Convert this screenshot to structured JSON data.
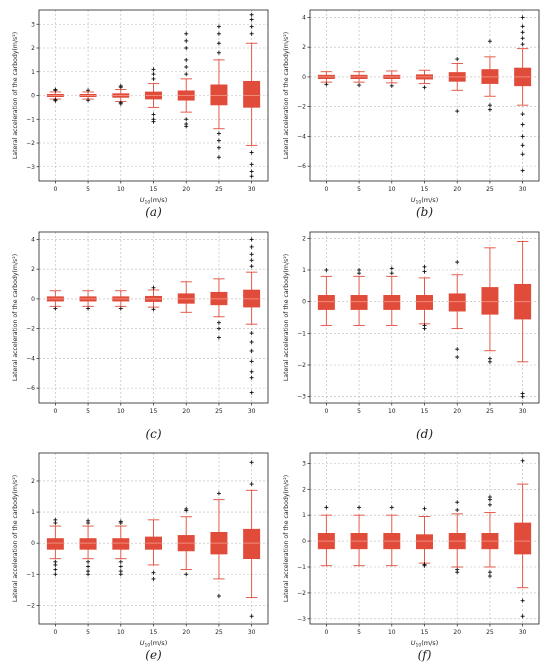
{
  "figure": {
    "panels": [
      {
        "caption": "(a)",
        "xlabel_main": "U",
        "xlabel_sub": "10",
        "xlabel_unit": "(m/s)",
        "ylabel": "Lateral acceleration of the carbody(m/s²)"
      },
      {
        "caption": "(b)",
        "xlabel_main": "U",
        "xlabel_sub": "10",
        "xlabel_unit": "(m/s)",
        "ylabel": "Lateral acceleration of the carbody(m/s²)"
      },
      {
        "caption": "(c)",
        "xlabel_main": "",
        "xlabel_sub": "",
        "xlabel_unit": "",
        "ylabel": "Lateral acceleration of the carbody(m/s²)"
      },
      {
        "caption": "(d)",
        "xlabel_main": "",
        "xlabel_sub": "",
        "xlabel_unit": "",
        "ylabel": "Lateral acceleration of the carbody(m/s²)"
      },
      {
        "caption": "(e)",
        "xlabel_main": "U",
        "xlabel_sub": "10",
        "xlabel_unit": "(m/s)",
        "ylabel": "Lateral acceleration of the carbody(m/s²)"
      },
      {
        "caption": "(f)",
        "xlabel_main": "U",
        "xlabel_sub": "10",
        "xlabel_unit": "(m/s)",
        "ylabel": "Lateral acceleration of the carbody(m/s²)"
      }
    ],
    "colors": {
      "box": "#e04b3a",
      "whisker": "#e04b3a",
      "median": "#f28a7a",
      "outlier": "#111111",
      "grid": "#b8b8b8"
    }
  },
  "chart_data": [
    {
      "type": "box",
      "title": "(a)",
      "categories": [
        "0",
        "5",
        "10",
        "15",
        "20",
        "25",
        "30"
      ],
      "ylim": [
        -3.6,
        3.6
      ],
      "yticks": [
        -3,
        -2,
        -1,
        0,
        1,
        2,
        3
      ],
      "grid": true,
      "boxes": [
        {
          "whislo": -0.15,
          "q1": -0.05,
          "med": 0,
          "q3": 0.05,
          "whishi": 0.15,
          "fliers": [
            0.22,
            0.25,
            -0.18,
            -0.22
          ]
        },
        {
          "whislo": -0.15,
          "q1": -0.05,
          "med": 0,
          "q3": 0.05,
          "whishi": 0.15,
          "fliers": [
            0.22,
            -0.2
          ]
        },
        {
          "whislo": -0.25,
          "q1": -0.08,
          "med": 0,
          "q3": 0.08,
          "whishi": 0.25,
          "fliers": [
            0.35,
            0.4,
            -0.35,
            -0.3
          ]
        },
        {
          "whislo": -0.5,
          "q1": -0.15,
          "med": 0,
          "q3": 0.15,
          "whishi": 0.5,
          "fliers": [
            0.7,
            0.9,
            1.1,
            -0.8,
            -1.0,
            -1.1
          ]
        },
        {
          "whislo": -0.7,
          "q1": -0.2,
          "med": 0,
          "q3": 0.2,
          "whishi": 0.7,
          "fliers": [
            0.9,
            1.2,
            1.5,
            2.0,
            2.3,
            2.6,
            -1.0,
            -1.2,
            -1.3
          ]
        },
        {
          "whislo": -1.4,
          "q1": -0.4,
          "med": 0,
          "q3": 0.45,
          "whishi": 1.5,
          "fliers": [
            1.8,
            2.2,
            2.6,
            2.9,
            -1.6,
            -1.9,
            -2.2,
            -2.6
          ]
        },
        {
          "whislo": -2.1,
          "q1": -0.5,
          "med": 0,
          "q3": 0.6,
          "whishi": 2.2,
          "fliers": [
            2.6,
            2.9,
            3.2,
            3.4,
            -2.4,
            -2.9,
            -3.2,
            -3.4
          ]
        }
      ]
    },
    {
      "type": "box",
      "title": "(b)",
      "categories": [
        "0",
        "5",
        "10",
        "15",
        "20",
        "25",
        "30"
      ],
      "ylim": [
        -7,
        4.5
      ],
      "yticks": [
        -6,
        -4,
        -2,
        0,
        2,
        4
      ],
      "grid": true,
      "boxes": [
        {
          "whislo": -0.35,
          "q1": -0.12,
          "med": 0,
          "q3": 0.12,
          "whishi": 0.35,
          "fliers": [
            -0.5
          ]
        },
        {
          "whislo": -0.35,
          "q1": -0.12,
          "med": 0,
          "q3": 0.12,
          "whishi": 0.35,
          "fliers": [
            -0.55
          ]
        },
        {
          "whislo": -0.4,
          "q1": -0.12,
          "med": 0,
          "q3": 0.12,
          "whishi": 0.4,
          "fliers": [
            -0.6
          ]
        },
        {
          "whislo": -0.45,
          "q1": -0.15,
          "med": 0,
          "q3": 0.15,
          "whishi": 0.45,
          "fliers": [
            -0.7
          ]
        },
        {
          "whislo": -0.9,
          "q1": -0.3,
          "med": 0,
          "q3": 0.3,
          "whishi": 0.9,
          "fliers": [
            1.2,
            -2.3
          ]
        },
        {
          "whislo": -1.3,
          "q1": -0.45,
          "med": 0,
          "q3": 0.5,
          "whishi": 1.35,
          "fliers": [
            2.4,
            -1.9,
            -2.2
          ]
        },
        {
          "whislo": -1.9,
          "q1": -0.6,
          "med": 0,
          "q3": 0.6,
          "whishi": 1.9,
          "fliers": [
            2.2,
            2.6,
            3.0,
            3.4,
            4.0,
            -2.5,
            -3.2,
            -4.0,
            -4.6,
            -5.2,
            -6.3
          ]
        }
      ]
    },
    {
      "type": "box",
      "title": "(c)",
      "categories": [
        "0",
        "5",
        "10",
        "15",
        "20",
        "25",
        "30"
      ],
      "ylim": [
        -7,
        4.5
      ],
      "yticks": [
        -6,
        -4,
        -2,
        0,
        2,
        4
      ],
      "grid": true,
      "boxes": [
        {
          "whislo": -0.5,
          "q1": -0.15,
          "med": 0,
          "q3": 0.15,
          "whishi": 0.55,
          "fliers": [
            -0.65
          ]
        },
        {
          "whislo": -0.5,
          "q1": -0.15,
          "med": 0,
          "q3": 0.15,
          "whishi": 0.55,
          "fliers": [
            -0.65
          ]
        },
        {
          "whislo": -0.5,
          "q1": -0.15,
          "med": 0,
          "q3": 0.15,
          "whishi": 0.55,
          "fliers": [
            -0.65
          ]
        },
        {
          "whislo": -0.55,
          "q1": -0.18,
          "med": 0,
          "q3": 0.18,
          "whishi": 0.6,
          "fliers": [
            0.75,
            -0.7
          ]
        },
        {
          "whislo": -0.9,
          "q1": -0.3,
          "med": 0,
          "q3": 0.35,
          "whishi": 1.15,
          "fliers": []
        },
        {
          "whislo": -1.2,
          "q1": -0.4,
          "med": 0,
          "q3": 0.45,
          "whishi": 1.35,
          "fliers": [
            -1.6,
            -2.0,
            -2.6
          ]
        },
        {
          "whislo": -1.7,
          "q1": -0.55,
          "med": 0,
          "q3": 0.6,
          "whishi": 1.8,
          "fliers": [
            2.2,
            2.6,
            3.0,
            3.5,
            4.0,
            -2.3,
            -2.9,
            -3.5,
            -4.2,
            -4.9,
            -5.3,
            -6.3
          ]
        }
      ]
    },
    {
      "type": "box",
      "title": "(d)",
      "categories": [
        "0",
        "5",
        "10",
        "15",
        "20",
        "25",
        "30"
      ],
      "ylim": [
        -3.2,
        2.2
      ],
      "yticks": [
        -3,
        -2,
        -1,
        0,
        1,
        2
      ],
      "grid": true,
      "boxes": [
        {
          "whislo": -0.75,
          "q1": -0.25,
          "med": 0,
          "q3": 0.2,
          "whishi": 0.8,
          "fliers": [
            1.0
          ]
        },
        {
          "whislo": -0.75,
          "q1": -0.25,
          "med": 0,
          "q3": 0.2,
          "whishi": 0.8,
          "fliers": [
            0.9,
            1.0
          ]
        },
        {
          "whislo": -0.75,
          "q1": -0.25,
          "med": 0,
          "q3": 0.2,
          "whishi": 0.8,
          "fliers": [
            0.9,
            1.05
          ]
        },
        {
          "whislo": -0.7,
          "q1": -0.25,
          "med": 0,
          "q3": 0.2,
          "whishi": 0.75,
          "fliers": [
            0.95,
            1.1,
            -0.75,
            -0.85
          ]
        },
        {
          "whislo": -0.85,
          "q1": -0.3,
          "med": 0,
          "q3": 0.25,
          "whishi": 0.85,
          "fliers": [
            1.25,
            -1.5,
            -1.75
          ]
        },
        {
          "whislo": -1.55,
          "q1": -0.4,
          "med": 0,
          "q3": 0.45,
          "whishi": 1.7,
          "fliers": [
            -1.8,
            -1.9
          ]
        },
        {
          "whislo": -1.9,
          "q1": -0.55,
          "med": 0,
          "q3": 0.55,
          "whishi": 1.9,
          "fliers": [
            -2.9,
            -3.0
          ]
        }
      ]
    },
    {
      "type": "box",
      "title": "(e)",
      "categories": [
        "0",
        "5",
        "10",
        "15",
        "20",
        "25",
        "30"
      ],
      "ylim": [
        -2.6,
        2.9
      ],
      "yticks": [
        -2,
        -1,
        0,
        1,
        2
      ],
      "grid": true,
      "boxes": [
        {
          "whislo": -0.5,
          "q1": -0.2,
          "med": 0,
          "q3": 0.15,
          "whishi": 0.55,
          "fliers": [
            0.65,
            0.75,
            -0.6,
            -0.7,
            -0.85,
            -1.0
          ]
        },
        {
          "whislo": -0.5,
          "q1": -0.2,
          "med": 0,
          "q3": 0.15,
          "whishi": 0.55,
          "fliers": [
            0.65,
            0.72,
            -0.6,
            -0.75,
            -0.9,
            -1.0
          ]
        },
        {
          "whislo": -0.5,
          "q1": -0.2,
          "med": 0,
          "q3": 0.15,
          "whishi": 0.55,
          "fliers": [
            0.65,
            0.7,
            -0.6,
            -0.75,
            -0.9,
            -1.0
          ]
        },
        {
          "whislo": -0.7,
          "q1": -0.2,
          "med": 0,
          "q3": 0.2,
          "whishi": 0.75,
          "fliers": [
            -0.95,
            -1.15
          ]
        },
        {
          "whislo": -0.85,
          "q1": -0.25,
          "med": 0,
          "q3": 0.25,
          "whishi": 0.85,
          "fliers": [
            1.05,
            1.1,
            -1.0
          ]
        },
        {
          "whislo": -1.15,
          "q1": -0.35,
          "med": 0,
          "q3": 0.35,
          "whishi": 1.4,
          "fliers": [
            1.6,
            -1.7
          ]
        },
        {
          "whislo": -1.75,
          "q1": -0.5,
          "med": 0,
          "q3": 0.45,
          "whishi": 1.7,
          "fliers": [
            1.9,
            2.6,
            -2.35
          ]
        }
      ]
    },
    {
      "type": "box",
      "title": "(f)",
      "categories": [
        "0",
        "5",
        "10",
        "15",
        "20",
        "25",
        "30"
      ],
      "ylim": [
        -3.2,
        3.4
      ],
      "yticks": [
        -3,
        -2,
        -1,
        0,
        1,
        2,
        3
      ],
      "grid": true,
      "boxes": [
        {
          "whislo": -0.95,
          "q1": -0.3,
          "med": 0,
          "q3": 0.3,
          "whishi": 1.0,
          "fliers": [
            1.3
          ]
        },
        {
          "whislo": -0.95,
          "q1": -0.3,
          "med": 0,
          "q3": 0.3,
          "whishi": 1.0,
          "fliers": [
            1.3
          ]
        },
        {
          "whislo": -0.95,
          "q1": -0.3,
          "med": 0,
          "q3": 0.3,
          "whishi": 1.0,
          "fliers": [
            1.3
          ]
        },
        {
          "whislo": -0.85,
          "q1": -0.3,
          "med": 0,
          "q3": 0.25,
          "whishi": 0.95,
          "fliers": [
            1.25,
            -0.9,
            -0.95
          ]
        },
        {
          "whislo": -1.0,
          "q1": -0.3,
          "med": 0,
          "q3": 0.3,
          "whishi": 1.05,
          "fliers": [
            1.2,
            1.5,
            -1.1,
            -1.2
          ]
        },
        {
          "whislo": -1.0,
          "q1": -0.3,
          "med": 0,
          "q3": 0.3,
          "whishi": 1.1,
          "fliers": [
            1.4,
            1.6,
            1.7,
            -1.2,
            -1.35
          ]
        },
        {
          "whislo": -1.8,
          "q1": -0.5,
          "med": 0,
          "q3": 0.7,
          "whishi": 2.2,
          "fliers": [
            3.1,
            -2.3,
            -2.9
          ]
        }
      ]
    }
  ]
}
